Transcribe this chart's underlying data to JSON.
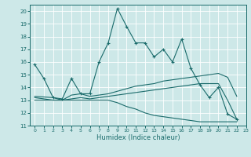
{
  "xlabel": "Humidex (Indice chaleur)",
  "xlim": [
    -0.5,
    23
  ],
  "ylim": [
    11,
    20.5
  ],
  "yticks": [
    11,
    12,
    13,
    14,
    15,
    16,
    17,
    18,
    19,
    20
  ],
  "xticks": [
    0,
    1,
    2,
    3,
    4,
    5,
    6,
    7,
    8,
    9,
    10,
    11,
    12,
    13,
    14,
    15,
    16,
    17,
    18,
    19,
    20,
    21,
    22,
    23
  ],
  "bg_color": "#cde8e8",
  "line_color": "#1a6b6b",
  "line1_x": [
    0,
    1,
    2,
    3,
    4,
    5,
    6,
    7,
    8,
    9,
    10,
    11,
    12,
    13,
    14,
    15,
    16,
    17,
    18,
    19,
    20,
    21,
    22
  ],
  "line1_y": [
    15.8,
    14.7,
    13.2,
    13.1,
    14.7,
    13.5,
    13.5,
    16.0,
    17.5,
    20.2,
    18.8,
    17.5,
    17.5,
    16.4,
    17.0,
    16.0,
    17.8,
    15.5,
    14.2,
    13.2,
    14.0,
    11.9,
    11.5
  ],
  "line2_x": [
    0,
    2,
    3,
    4,
    5,
    6,
    7,
    8,
    9,
    10,
    11,
    12,
    13,
    14,
    15,
    16,
    17,
    18,
    19,
    20,
    21,
    22
  ],
  "line2_y": [
    13.3,
    13.2,
    13.0,
    13.4,
    13.5,
    13.3,
    13.4,
    13.5,
    13.7,
    13.9,
    14.1,
    14.2,
    14.3,
    14.5,
    14.6,
    14.7,
    14.8,
    14.9,
    15.0,
    15.1,
    14.8,
    13.3
  ],
  "line3_x": [
    0,
    2,
    3,
    4,
    5,
    6,
    7,
    8,
    9,
    10,
    11,
    12,
    13,
    14,
    15,
    16,
    17,
    18,
    19,
    20,
    21,
    22
  ],
  "line3_y": [
    13.2,
    13.0,
    13.0,
    13.1,
    13.2,
    13.1,
    13.2,
    13.3,
    13.4,
    13.5,
    13.6,
    13.7,
    13.8,
    13.9,
    14.0,
    14.1,
    14.2,
    14.3,
    14.3,
    14.3,
    13.0,
    11.5
  ],
  "line4_x": [
    0,
    2,
    3,
    4,
    5,
    6,
    7,
    8,
    9,
    10,
    11,
    12,
    13,
    14,
    15,
    16,
    17,
    18,
    19,
    20,
    21,
    22
  ],
  "line4_y": [
    13.0,
    13.0,
    13.0,
    13.0,
    13.0,
    13.0,
    13.0,
    13.0,
    12.8,
    12.5,
    12.3,
    12.0,
    11.8,
    11.7,
    11.6,
    11.5,
    11.4,
    11.3,
    11.3,
    11.3,
    11.3,
    11.3
  ]
}
